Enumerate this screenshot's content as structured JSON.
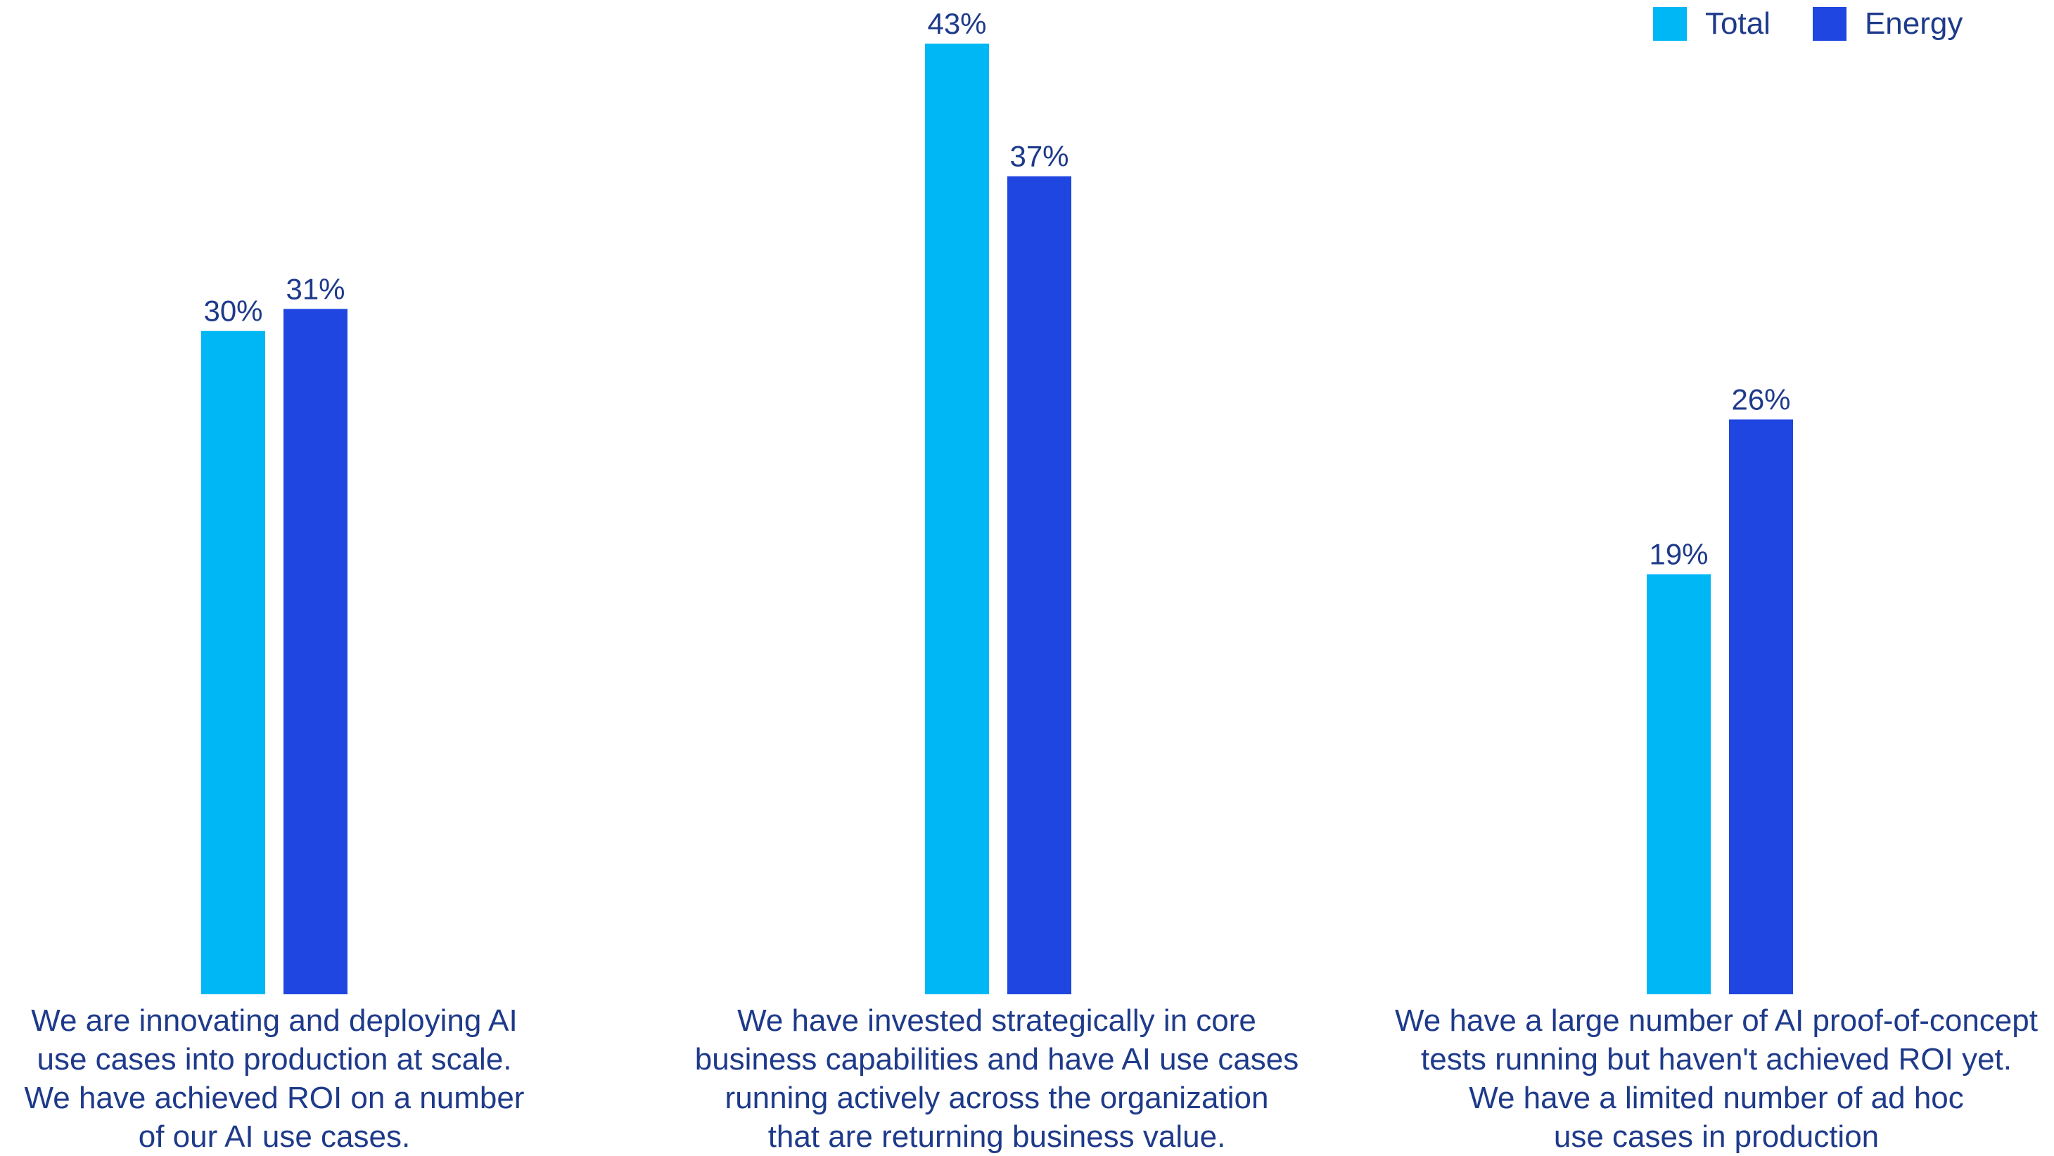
{
  "colors": {
    "total": "#00b7f5",
    "energy": "#1f46e0",
    "text": "#1e3a8a"
  },
  "legend": {
    "items": [
      {
        "label": "Total",
        "color": "#00b7f5"
      },
      {
        "label": "Energy",
        "color": "#1f46e0"
      }
    ]
  },
  "chart_data": {
    "type": "bar",
    "categories": [
      "We are innovating and deploying AI\nuse cases into production at scale.\nWe have achieved ROI on a number\nof our AI use cases.",
      "We have invested strategically in core\nbusiness capabilities and have AI use cases\nrunning actively across the organization\nthat are returning business value.",
      "We have a large number of AI proof-of-concept\ntests running but haven't achieved ROI yet.\nWe have a limited number of ad hoc\nuse cases in production"
    ],
    "series": [
      {
        "name": "Total",
        "values": [
          30,
          43,
          19
        ],
        "labels": [
          "30%",
          "43%",
          "19%"
        ]
      },
      {
        "name": "Energy",
        "values": [
          31,
          37,
          26
        ],
        "labels": [
          "31%",
          "37%",
          "26%"
        ]
      }
    ],
    "ylim": [
      0,
      43
    ],
    "grid": false,
    "legend_position": "top-right"
  }
}
